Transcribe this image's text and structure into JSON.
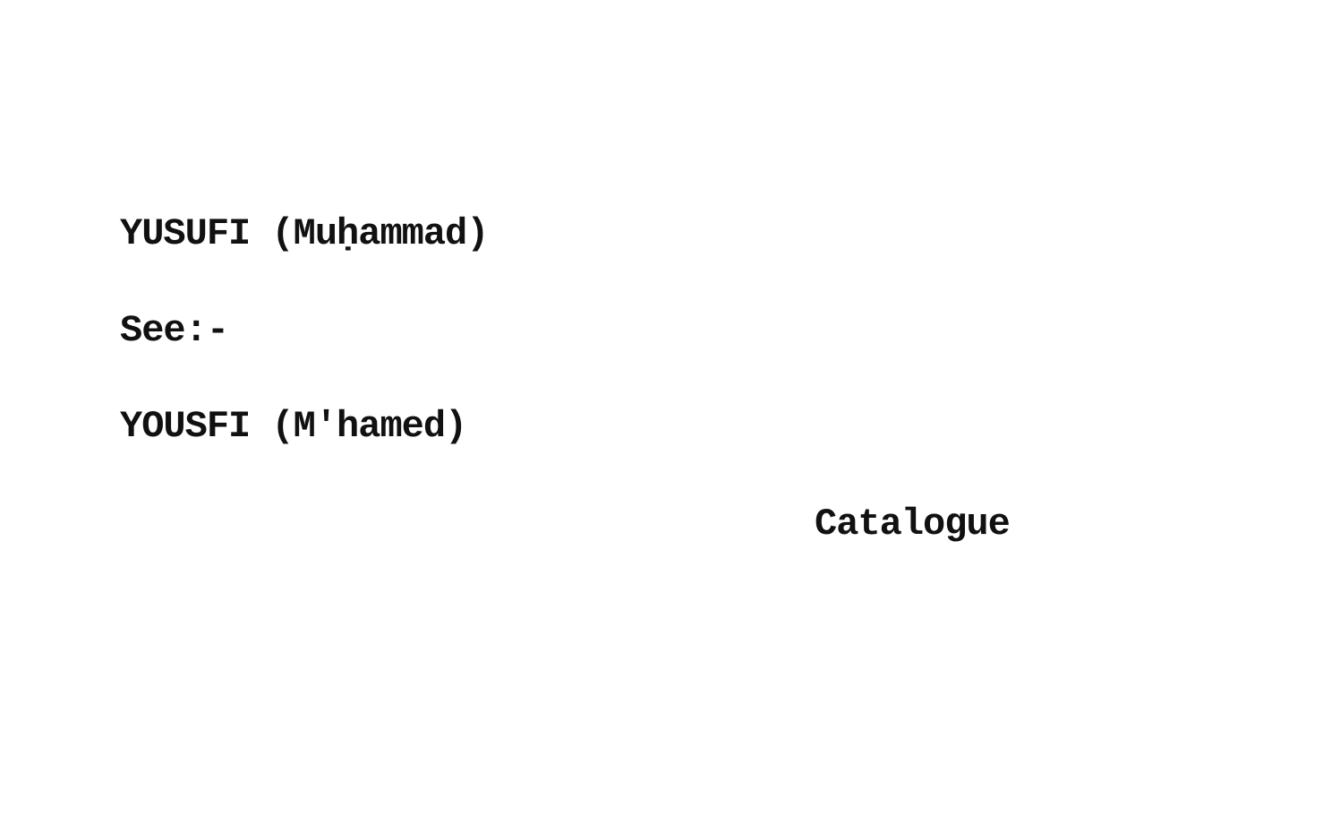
{
  "card": {
    "heading": "YUSUFI (Muḥammad)",
    "see_label": "See:-",
    "reference": "YOUSFI (M'hamed)",
    "footer": "Catalogue"
  }
}
